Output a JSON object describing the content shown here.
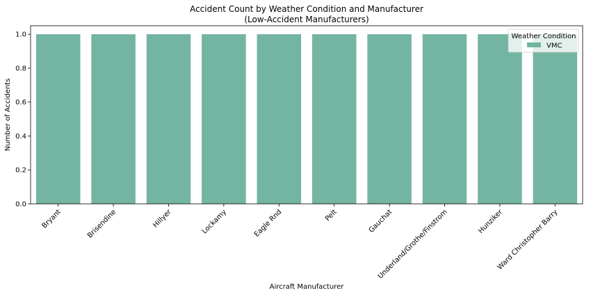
{
  "chart_data": {
    "type": "bar",
    "title": "Accident Count by Weather Condition and Manufacturer",
    "subtitle": "(Low-Accident Manufacturers)",
    "xlabel": "Aircraft Manufacturer",
    "ylabel": "Number of Accidents",
    "categories": [
      "Bryant",
      "Brisendine",
      "Hillyer",
      "Lockamy",
      "Eagle Rnd",
      "Pelt",
      "Gauchat",
      "Underland/Grothe/Finstrom",
      "Hunziker",
      "Ward Christopher Barry"
    ],
    "series": [
      {
        "name": "VMC",
        "color": "#73b5a2",
        "values": [
          1,
          1,
          1,
          1,
          1,
          1,
          1,
          1,
          1,
          1
        ]
      }
    ],
    "ylim": [
      0,
      1.05
    ],
    "yticks": [
      "0.0",
      "0.2",
      "0.4",
      "0.6",
      "0.8",
      "1.0"
    ],
    "grid": false,
    "legend": {
      "title": "Weather Condition",
      "placement": "top-right"
    }
  }
}
